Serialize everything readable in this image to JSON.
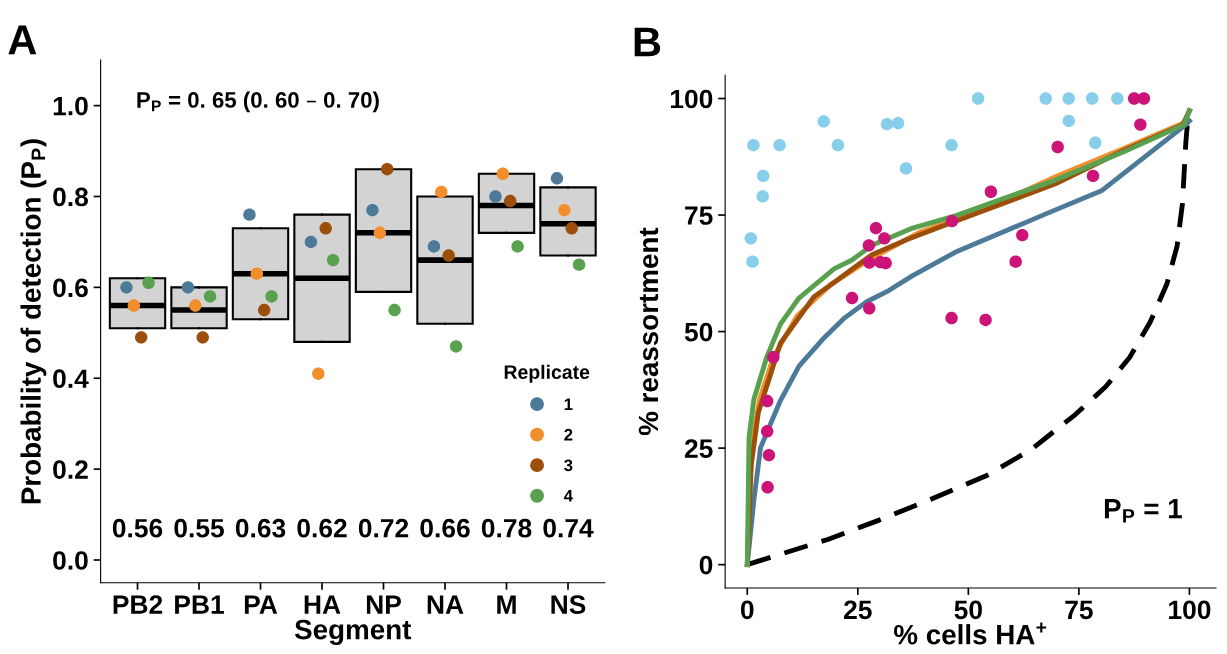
{
  "chart_data": [
    {
      "type": "box",
      "xlabel": "Segment",
      "ylabel": "Probability of detection (P$_{P}$)",
      "legend_title": "Replicate",
      "legend": "bottom right",
      "color": "#d3d3d3",
      "marker": "circle",
      "categories": [
        "PB2",
        "PB1",
        "PA",
        "HA",
        "NP",
        "NA",
        "M",
        "NS"
      ],
      "ylim": [
        -0.05,
        1.1
      ],
      "yticks": [
        {
          "value": 0,
          "label": "0.0"
        },
        0.2,
        0.4,
        0.6,
        0.8,
        {
          "value": 1,
          "label": "1.0"
        }
      ],
      "boxes": [
        {
          "low": 0.51,
          "q1": 0.51,
          "median": 0.56,
          "q3": 0.62,
          "high": 0.62
        },
        {
          "low": 0.51,
          "q1": 0.51,
          "median": 0.55,
          "q3": 0.6,
          "high": 0.6
        },
        {
          "low": 0.53,
          "q1": 0.53,
          "median": 0.63,
          "q3": 0.73,
          "high": 0.73
        },
        {
          "low": 0.48,
          "q1": 0.48,
          "median": 0.62,
          "q3": 0.76,
          "high": 0.76
        },
        {
          "low": 0.59,
          "q1": 0.59,
          "median": 0.72,
          "q3": 0.86,
          "high": 0.86
        },
        {
          "low": 0.52,
          "q1": 0.52,
          "median": 0.66,
          "q3": 0.8,
          "high": 0.8
        },
        {
          "low": 0.72,
          "q1": 0.72,
          "median": 0.78,
          "q3": 0.85,
          "high": 0.85
        },
        {
          "low": 0.67,
          "q1": 0.67,
          "median": 0.74,
          "q3": 0.82,
          "high": 0.82
        }
      ],
      "series": [
        {
          "type": "scatter",
          "name": "1",
          "color": "#4e7a9a",
          "x": [
            "PB2",
            "PB1",
            "PA",
            "HA",
            "NP",
            "NA",
            "M",
            "NS"
          ],
          "values": [
            0.6,
            0.6,
            0.76,
            0.7,
            0.77,
            0.69,
            0.8,
            0.84
          ]
        },
        {
          "type": "scatter",
          "name": "2",
          "color": "#f28e2b",
          "x": [
            "PB2",
            "PB1",
            "PA",
            "HA",
            "NP",
            "NA",
            "M",
            "NS"
          ],
          "values": [
            0.56,
            0.56,
            0.63,
            0.41,
            0.72,
            0.81,
            0.85,
            0.77
          ]
        },
        {
          "type": "scatter",
          "name": "3",
          "color": "#9c4f0a",
          "x": [
            "PB2",
            "PB1",
            "PA",
            "HA",
            "NP",
            "NA",
            "M",
            "NS"
          ],
          "values": [
            0.49,
            0.49,
            0.55,
            0.73,
            0.86,
            0.67,
            0.79,
            0.73
          ]
        },
        {
          "type": "scatter",
          "name": "4",
          "color": "#59a14f",
          "x": [
            "PB2",
            "PB1",
            "PA",
            "HA",
            "NP",
            "NA",
            "M",
            "NS"
          ],
          "values": [
            0.61,
            0.58,
            0.58,
            0.66,
            0.55,
            0.47,
            0.69,
            0.65
          ]
        }
      ],
      "annotations": [
        "A",
        "P$_{P}$ = 0. 65 (0. 60 – 0. 70)",
        "0.56",
        "0.55",
        "0.63",
        "0.62",
        "0.72",
        "0.66",
        "0.78",
        "0.74"
      ]
    },
    {
      "type": "line",
      "xlabel": "% cells HA$^{+}$",
      "ylabel": "% reassortment",
      "xlim": [
        -5,
        106
      ],
      "xticks": [
        0,
        25,
        50,
        75,
        100
      ],
      "ylim": [
        -5,
        105
      ],
      "yticks": [
        0,
        25,
        50,
        75,
        100
      ],
      "series": [
        {
          "type": "scatter",
          "color": "#87ceeb",
          "marker": "circle",
          "x": [
            1.4,
            7.3,
            3.6,
            3.5,
            0.8,
            1.2,
            17.3,
            20.5,
            31.6,
            34.1,
            35.9,
            46.2,
            52.2,
            67.5,
            72.7,
            78.0,
            83.7,
            72.7,
            78.7
          ],
          "values": [
            90,
            90,
            83.4,
            79,
            70,
            65,
            95.1,
            90,
            94.5,
            94.7,
            85,
            90,
            100,
            100,
            100,
            100,
            100,
            95.2,
            90.5
          ]
        },
        {
          "type": "scatter",
          "color": "#cc1478",
          "marker": "circle",
          "x": [
            87.5,
            89.7,
            88.9,
            70.2,
            78.2,
            55.1,
            46.3,
            62.2,
            60.7,
            29.1,
            31.0,
            27.5,
            27.6,
            30.1,
            31.3,
            23.7,
            27.6,
            46.2,
            53.9,
            5.9,
            4.5,
            4.5,
            4.9,
            4.6
          ],
          "values": [
            100,
            100,
            94.4,
            89.6,
            83.4,
            80,
            73.7,
            70.7,
            65,
            72.2,
            70,
            68.5,
            64.8,
            64.9,
            64.7,
            57.2,
            55,
            52.9,
            52.5,
            44.5,
            35.1,
            28.6,
            23.5,
            16.6
          ]
        },
        {
          "type": "line",
          "color": "#000000",
          "line_style": "dashed",
          "x": [
            0,
            6.7,
            18.2,
            29.7,
            41.2,
            54.3,
            64.2,
            74.2,
            81.1,
            86.5,
            91.1,
            94.9,
            97.2,
            98.4,
            99.2,
            99.6
          ],
          "values": [
            0,
            2.0,
            5.4,
            9.5,
            13.9,
            19.2,
            24.7,
            32.2,
            38.2,
            44.5,
            52.0,
            60.2,
            68.3,
            77.3,
            90.7,
            95.2
          ]
        },
        {
          "type": "line",
          "color": "#4e7a9a",
          "x": [
            0,
            1.5,
            3.0,
            7.5,
            11.7,
            17.1,
            22.1,
            27.0,
            32.0,
            37.4,
            47.0,
            67.4,
            80.1,
            99.2,
            100
          ],
          "values": [
            0,
            13.9,
            25.1,
            35.2,
            42.6,
            48.4,
            53.0,
            56.4,
            58.8,
            62.0,
            67.0,
            75.2,
            80.2,
            94.4,
            95.2
          ]
        },
        {
          "type": "line",
          "color": "#f28e2b",
          "x": [
            0,
            0.5,
            1.3,
            2.8,
            5.9,
            11.3,
            18.9,
            27.4,
            38.9,
            54.3,
            69.7,
            85.0,
            98.8,
            100
          ],
          "values": [
            0,
            16.2,
            27.3,
            35.5,
            44.5,
            53.4,
            60.1,
            65.3,
            71.3,
            76.5,
            83.2,
            89.2,
            94.8,
            97.4
          ]
        },
        {
          "type": "line",
          "color": "#9c4f0a",
          "x": [
            0,
            0.9,
            2.5,
            7.5,
            15.1,
            19.0,
            23.6,
            28.2,
            36.3,
            46.6,
            69.7,
            85.0,
            98.5,
            100
          ],
          "values": [
            0,
            21.4,
            32.6,
            47.5,
            57.5,
            60.1,
            63.3,
            66.5,
            69.8,
            73.5,
            81.7,
            88.8,
            94.4,
            97.4
          ]
        },
        {
          "type": "line",
          "color": "#59a14f",
          "x": [
            0,
            0.4,
            1.5,
            4.4,
            7.5,
            11.7,
            19.7,
            23.6,
            28.2,
            37.4,
            46.6,
            69.7,
            85.0,
            98.8,
            100
          ],
          "values": [
            0,
            27.3,
            35.5,
            44.5,
            51.6,
            57.2,
            63.5,
            65.3,
            68.5,
            72.2,
            74.7,
            82.5,
            88.5,
            94.4,
            97.4
          ]
        }
      ],
      "annotations": [
        "B",
        "P$_{P}$ = 1"
      ]
    }
  ]
}
